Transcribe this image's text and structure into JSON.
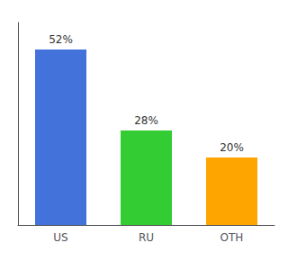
{
  "chart_data": {
    "type": "bar",
    "categories": [
      "US",
      "RU",
      "OTH"
    ],
    "values": [
      52,
      28,
      20
    ],
    "value_labels": [
      "52%",
      "28%",
      "20%"
    ],
    "data_labels": true,
    "colors": [
      "#4472DB",
      "#33CC33",
      "#FFA500"
    ],
    "ylim": [
      0,
      60
    ],
    "tick_labels": "x",
    "grid": false
  }
}
